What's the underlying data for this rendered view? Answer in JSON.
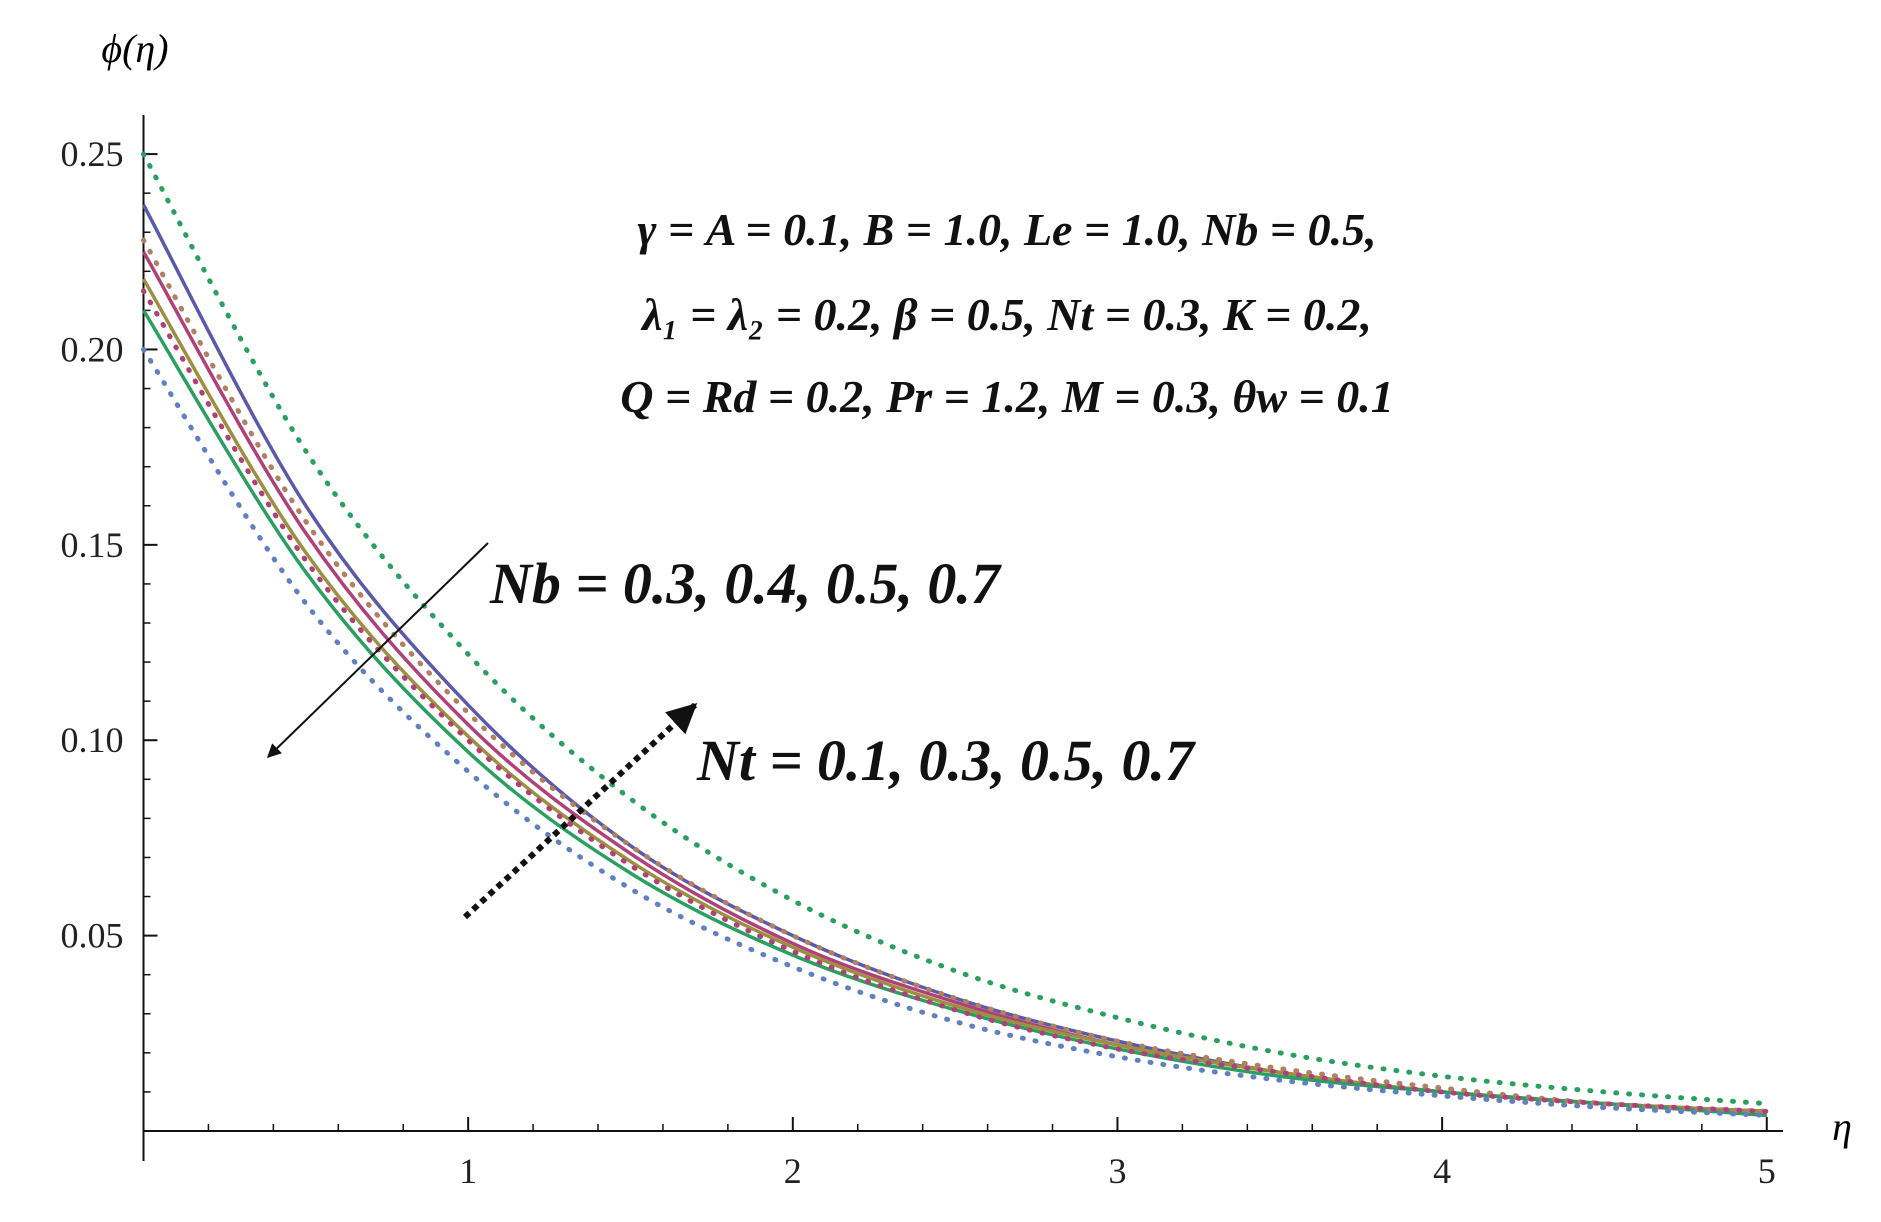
{
  "chart_data": {
    "type": "line",
    "y_label": "ϕ(η)",
    "x_label": "η",
    "annotations": [
      "γ = A = 0.1, B = 1.0, Le = 1.0, Nb = 0.5,",
      "λ₁ = λ₂ = 0.2, β = 0.5, Nt = 0.3, K = 0.2,",
      "Q = Rd = 0.2, Pr = 1.2, M = 0.3, θw = 0.1",
      "Nb = 0.3, 0.4, 0.5, 0.7",
      "Nt = 0.1, 0.3, 0.5, 0.7"
    ],
    "x": [
      0,
      0.5,
      1,
      1.5,
      2,
      2.5,
      3,
      3.5,
      4,
      4.5,
      5
    ],
    "series": [
      {
        "color": "#5a5aa8",
        "style": "solid",
        "values": [
          0.237,
          0.16,
          0.109,
          0.073,
          0.05,
          0.034,
          0.023,
          0.015,
          0.01,
          0.007,
          0.005
        ]
      },
      {
        "color": "#b0407a",
        "style": "solid",
        "values": [
          0.225,
          0.153,
          0.104,
          0.071,
          0.048,
          0.033,
          0.022,
          0.015,
          0.01,
          0.007,
          0.005
        ]
      },
      {
        "color": "#9c9040",
        "style": "solid",
        "values": [
          0.218,
          0.148,
          0.101,
          0.069,
          0.047,
          0.032,
          0.022,
          0.015,
          0.01,
          0.007,
          0.005
        ]
      },
      {
        "color": "#2aa060",
        "style": "solid",
        "values": [
          0.21,
          0.143,
          0.097,
          0.066,
          0.045,
          0.031,
          0.021,
          0.014,
          0.01,
          0.007,
          0.004
        ]
      },
      {
        "color": "#2aa060",
        "style": "dotted",
        "values": [
          0.25,
          0.174,
          0.122,
          0.085,
          0.059,
          0.041,
          0.029,
          0.02,
          0.014,
          0.01,
          0.007
        ]
      },
      {
        "color": "#b08060",
        "style": "dotted",
        "values": [
          0.228,
          0.156,
          0.107,
          0.073,
          0.05,
          0.034,
          0.023,
          0.016,
          0.011,
          0.007,
          0.005
        ]
      },
      {
        "color": "#b0407a",
        "style": "dotted",
        "values": [
          0.215,
          0.146,
          0.1,
          0.068,
          0.046,
          0.031,
          0.021,
          0.015,
          0.01,
          0.007,
          0.005
        ]
      },
      {
        "color": "#6080c0",
        "style": "dotted",
        "values": [
          0.2,
          0.135,
          0.092,
          0.062,
          0.042,
          0.028,
          0.019,
          0.013,
          0.009,
          0.006,
          0.004
        ]
      }
    ],
    "xlim": [
      0,
      5.05
    ],
    "ylim": [
      0,
      0.26
    ],
    "xticks": [
      1,
      2,
      3,
      4,
      5
    ],
    "yticks": [
      {
        "value": 0.05,
        "label": "0.05"
      },
      {
        "value": 0.1,
        "label": "0.10"
      },
      {
        "value": 0.15,
        "label": "0.15"
      },
      {
        "value": 0.2,
        "label": "0.20"
      },
      {
        "value": 0.25,
        "label": "0.25"
      }
    ]
  }
}
